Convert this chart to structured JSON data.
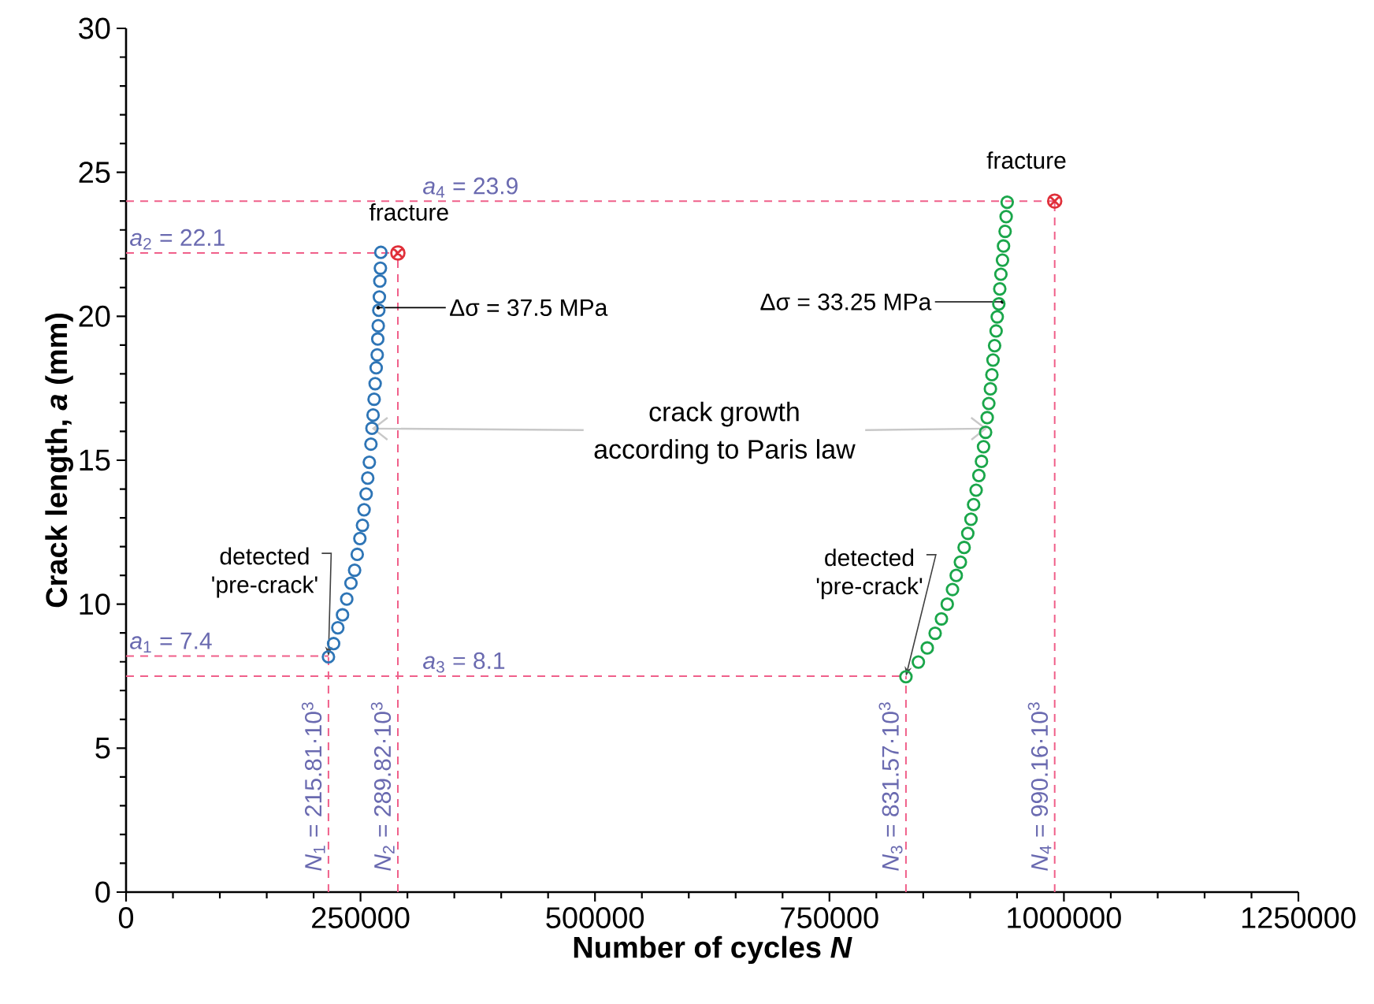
{
  "chart_data": {
    "type": "scatter",
    "xlabel": "Number of cycles *N*",
    "ylabel": "Crack length, *a* (mm)",
    "xlim": [
      0,
      1250000
    ],
    "xticks": [
      0,
      250000,
      500000,
      750000,
      1000000,
      1250000
    ],
    "ylim": [
      0,
      30
    ],
    "yticks": [
      0,
      5,
      10,
      15,
      20,
      25,
      30
    ],
    "marker": "circle",
    "series": [
      {
        "color": "#2e75b6",
        "x": [
          215810,
          221300,
          225800,
          230800,
          235300,
          239800,
          243700,
          246500,
          249300,
          252100,
          253800,
          256000,
          257700,
          259400,
          261100,
          262200,
          263400,
          264500,
          265600,
          266700,
          267800,
          268400,
          268900,
          269500,
          270100,
          270600,
          271200,
          271700
        ],
        "values": [
          8.17,
          8.63,
          9.18,
          9.63,
          10.18,
          10.73,
          11.18,
          11.73,
          12.28,
          12.74,
          13.28,
          13.83,
          14.38,
          14.93,
          15.56,
          16.11,
          16.57,
          17.12,
          17.66,
          18.21,
          18.66,
          19.21,
          19.67,
          20.21,
          20.67,
          21.22,
          21.67,
          22.22
        ]
      },
      {
        "color": "#1aa64a",
        "x": [
          831570,
          844800,
          854300,
          862700,
          869400,
          875600,
          881200,
          885200,
          889600,
          893600,
          897500,
          900900,
          903700,
          906400,
          909300,
          912100,
          914300,
          916500,
          918200,
          919900,
          921600,
          923200,
          924400,
          926100,
          927700,
          928900,
          930600,
          931600,
          932800,
          934500,
          935600,
          937300,
          938400,
          939500
        ],
        "values": [
          7.48,
          7.99,
          8.48,
          8.99,
          9.49,
          10.0,
          10.51,
          11.0,
          11.46,
          11.97,
          12.46,
          12.95,
          13.46,
          13.96,
          14.47,
          14.96,
          15.47,
          15.97,
          16.48,
          16.97,
          17.48,
          17.97,
          18.48,
          18.98,
          19.49,
          19.98,
          20.43,
          20.95,
          21.46,
          21.95,
          22.44,
          22.95,
          23.46,
          23.96
        ]
      },
      {
        "color": "#e0303a",
        "marker": "cross",
        "x": [
          289820,
          990160
        ],
        "values": [
          22.2,
          24.0
        ]
      }
    ],
    "ref_lines": [
      {
        "axis": "y",
        "value": 8.2,
        "color": "#f0608a",
        "line_style": "dashed"
      },
      {
        "axis": "y",
        "value": 22.2,
        "color": "#f0608a",
        "line_style": "dashed"
      },
      {
        "axis": "y",
        "value": 7.5,
        "color": "#f0608a",
        "line_style": "dashed"
      },
      {
        "axis": "y",
        "value": 24.0,
        "color": "#f0608a",
        "line_style": "dashed"
      },
      {
        "axis": "x",
        "value": 215810,
        "color": "#f0608a",
        "line_style": "dashed"
      },
      {
        "axis": "x",
        "value": 289820,
        "color": "#f0608a",
        "line_style": "dashed"
      },
      {
        "axis": "x",
        "value": 831570,
        "color": "#f0608a",
        "line_style": "dashed"
      },
      {
        "axis": "x",
        "value": 990160,
        "color": "#f0608a",
        "line_style": "dashed"
      }
    ],
    "annotations": [
      {
        "text": "fracture",
        "x": 289820,
        "y": 22.2
      },
      {
        "text": "fracture",
        "x": 990160,
        "y": 24.0
      },
      {
        "text": "Δσ = 37.5 MPa",
        "x": 268900,
        "y": 20.3
      },
      {
        "text": "Δσ = 33.25 MPa",
        "x": 934500,
        "y": 20.5
      },
      "crack growth",
      {
        "text": "according to Paris law",
        "x": 262000,
        "y": 16.1
      },
      {
        "text": "detected 'pre-crack'",
        "x": 215810,
        "y": 8.2
      },
      {
        "text": "detected 'pre-crack'",
        "x": 831570,
        "y": 7.5
      },
      "*a*$_{1}$ = 7.4",
      "*a*$_{2}$ = 22.1",
      "*a*$_{3}$ = 8.1",
      "*a*$_{4}$ = 23.9",
      "*N*$_{1}$ = 215.81·10$^{3}$",
      "*N*$_{2}$ = 289.82·10$^{3}$",
      "*N*$_{3}$ = 831.57·10$^{3}$",
      "*N*$_{4}$ = 990.16·10$^{3}$"
    ]
  }
}
